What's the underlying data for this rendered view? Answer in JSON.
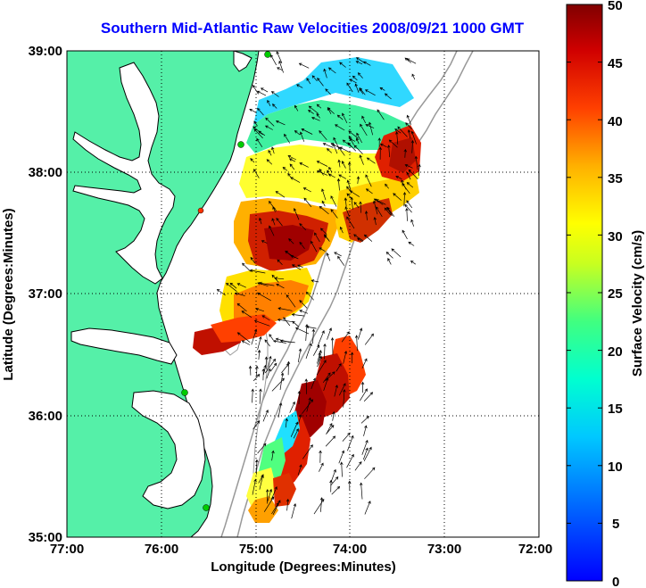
{
  "title": "Southern Mid-Atlantic Raw Velocities 2008/09/21 1000 GMT",
  "x_axis": {
    "label": "Longitude (Degrees:Minutes)",
    "ticks": [
      "77:00",
      "76:00",
      "75:00",
      "74:00",
      "73:00",
      "72:00"
    ]
  },
  "y_axis": {
    "label": "Latitude (Degrees:Minutes)",
    "ticks": [
      "39:00",
      "38:00",
      "37:00",
      "36:00",
      "35:00"
    ]
  },
  "colorbar": {
    "label": "Surface Velocity (cm/s)",
    "ticks": [
      "50",
      "45",
      "40",
      "35",
      "30",
      "25",
      "20",
      "15",
      "10",
      "5",
      "0"
    ],
    "min": 0,
    "max": 50,
    "colormap": "jet"
  },
  "colors": {
    "land": "#55f0a8",
    "coastline": "#000000",
    "bathymetry_contour": "#999999",
    "title": "#0000ff",
    "station": "#00cc00",
    "station_alt": "#ff3300"
  },
  "map": {
    "lon_range": [
      -77,
      -72
    ],
    "lat_range": [
      35,
      39
    ],
    "grid": "dotted"
  }
}
